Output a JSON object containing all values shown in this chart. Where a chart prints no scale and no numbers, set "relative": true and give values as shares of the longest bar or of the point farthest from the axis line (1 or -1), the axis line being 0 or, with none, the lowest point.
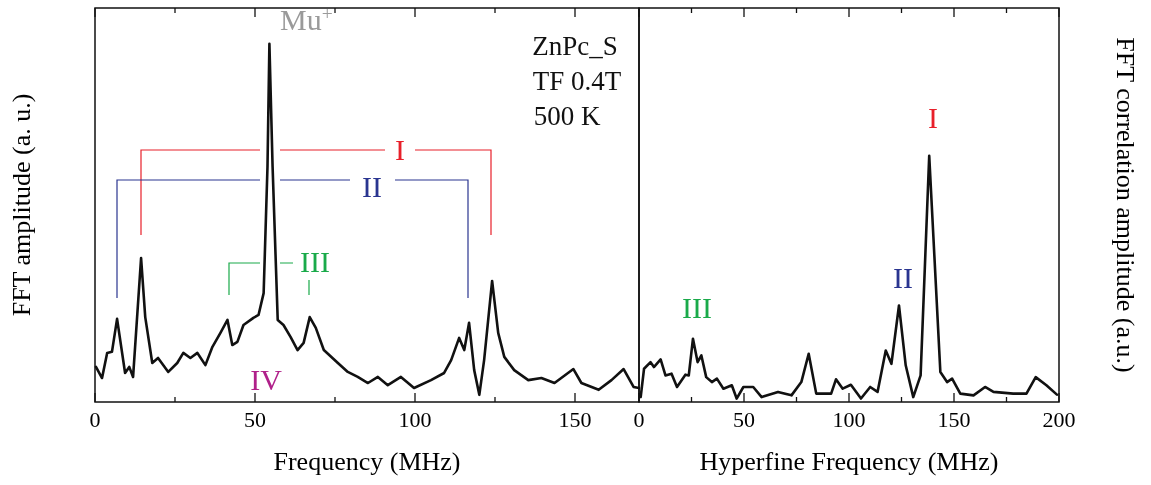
{
  "chart_data": [
    {
      "type": "line",
      "relative": true,
      "xlabel": "Frequency (MHz)",
      "ylabel": "FFT amplitude (a. u.)",
      "xlim": [
        0,
        170
      ],
      "xticks": [
        0,
        {
          "value": 25,
          "label": null
        },
        50,
        {
          "value": 75,
          "label": null
        },
        100,
        {
          "value": 125,
          "label": null
        },
        150
      ],
      "tick_labels": "x",
      "grid": false,
      "marker": "none",
      "line_style": "solid",
      "series": [
        {
          "color": "#111111",
          "x": [
            0.3,
            2.2,
            3.8,
            5.3,
            6.9,
            9.4,
            10.7,
            11.9,
            14.4,
            15.7,
            17.9,
            19.7,
            22.9,
            25.7,
            27.6,
            29.8,
            32.0,
            34.5,
            36.7,
            39.2,
            41.4,
            42.9,
            44.5,
            46.4,
            49.5,
            51.1,
            52.7,
            53.9,
            54.5,
            55.5,
            57.1,
            58.9,
            61.1,
            63.3,
            65.2,
            67.1,
            69.0,
            71.5,
            75.9,
            79.0,
            82.1,
            85.3,
            88.4,
            91.5,
            95.6,
            99.7,
            105.0,
            109.1,
            111.3,
            113.8,
            115.4,
            116.9,
            118.5,
            120.1,
            121.6,
            124.1,
            126.0,
            127.9,
            131.0,
            135.4,
            139.5,
            143.6,
            149.5,
            152.0,
            157.4,
            161.4,
            165.2,
            168.3,
            170
          ],
          "values": [
            0.098,
            0.067,
            0.137,
            0.14,
            0.232,
            0.081,
            0.098,
            0.07,
            0.402,
            0.237,
            0.109,
            0.123,
            0.084,
            0.109,
            0.137,
            0.123,
            0.137,
            0.103,
            0.154,
            0.193,
            0.229,
            0.159,
            0.168,
            0.215,
            0.235,
            0.243,
            0.304,
            0.656,
            1,
            0.656,
            0.229,
            0.215,
            0.182,
            0.145,
            0.165,
            0.237,
            0.207,
            0.145,
            0.109,
            0.084,
            0.07,
            0.053,
            0.07,
            0.047,
            0.07,
            0.039,
            0.061,
            0.081,
            0.117,
            0.179,
            0.145,
            0.221,
            0.089,
            0.02,
            0.117,
            0.338,
            0.193,
            0.126,
            0.089,
            0.061,
            0.067,
            0.053,
            0.092,
            0.053,
            0.034,
            0.061,
            0.092,
            0.042,
            0.039
          ]
        }
      ],
      "annotations": [
        "Mu$^{+}$",
        "I",
        "II",
        "III",
        "IV",
        "ZnPc_S",
        "TF 0.4T",
        "500 K"
      ]
    },
    {
      "type": "line",
      "relative": true,
      "xlabel": "Hyperfine Frequency (MHz)",
      "ylabel": "FFT correlation amplitude (a.u.)",
      "xlim": [
        0,
        200
      ],
      "xticks": [
        0,
        {
          "value": 25,
          "label": null
        },
        50,
        {
          "value": 75,
          "label": null
        },
        100,
        {
          "value": 125,
          "label": null
        },
        150,
        {
          "value": 175,
          "label": null
        },
        200
      ],
      "tick_labels": "x",
      "grid": false,
      "marker": "none",
      "line_style": "solid",
      "series": [
        {
          "color": "#111111",
          "x": [
            0.8,
            2.4,
            5.5,
            7.1,
            10.3,
            12.6,
            15.5,
            18.1,
            22.1,
            23.7,
            25.7,
            27.9,
            29.7,
            32.0,
            34.7,
            37.1,
            40.2,
            44.2,
            46.5,
            49.7,
            54.4,
            58.4,
            66.2,
            72.6,
            77.3,
            80.8,
            84.4,
            91.5,
            93.8,
            97.0,
            100.9,
            105.7,
            110.1,
            113.6,
            117.5,
            120.2,
            123.8,
            127.0,
            130.6,
            134.1,
            138.2,
            143.5,
            146.7,
            149.1,
            153.0,
            159.3,
            164.8,
            168.8,
            178.2,
            184.5,
            188.9,
            194.0,
            199
          ],
          "values": [
            0.02,
            0.135,
            0.162,
            0.142,
            0.173,
            0.108,
            0.115,
            0.061,
            0.111,
            0.108,
            0.257,
            0.162,
            0.189,
            0.101,
            0.081,
            0.095,
            0.054,
            0.068,
            0.014,
            0.061,
            0.061,
            0.02,
            0.041,
            0.027,
            0.081,
            0.196,
            0.034,
            0.034,
            0.092,
            0.054,
            0.07,
            0.014,
            0.061,
            0.041,
            0.209,
            0.155,
            0.392,
            0.149,
            0.02,
            0.108,
            1,
            0.122,
            0.081,
            0.095,
            0.034,
            0.027,
            0.061,
            0.041,
            0.034,
            0.034,
            0.101,
            0.068,
            0.03
          ]
        }
      ],
      "annotations": [
        "I",
        "II",
        "III"
      ]
    }
  ]
}
